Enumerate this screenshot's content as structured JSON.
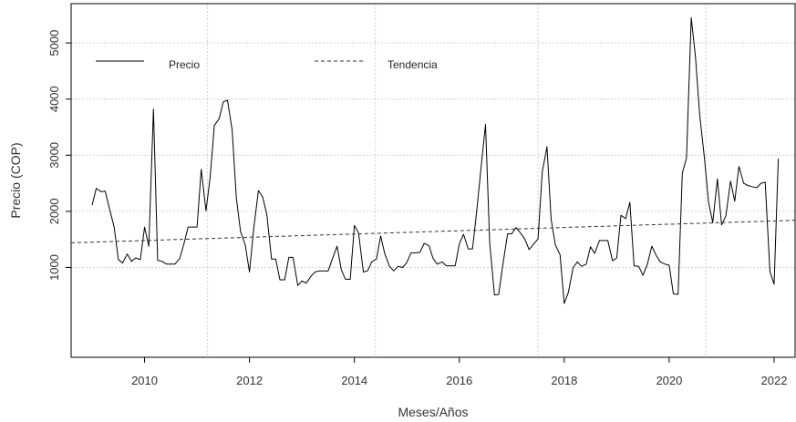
{
  "chart_data": {
    "type": "line",
    "title": "",
    "xlabel": "Meses/Años",
    "ylabel": "Precio (COP)",
    "xlim": [
      2008.6,
      2022.4
    ],
    "ylim": [
      -600,
      5700
    ],
    "x_ticks": [
      2010,
      2012,
      2014,
      2016,
      2018,
      2020,
      2022
    ],
    "y_ticks": [
      1000,
      2000,
      3000,
      4000,
      5000
    ],
    "grid": true,
    "legend_position": "top-left",
    "x_gridlines": [
      2011.2,
      2014.4,
      2017.5,
      2020.7
    ],
    "series": [
      {
        "name": "Precio",
        "style": "solid",
        "color": "#000000",
        "points": [
          [
            2009.0,
            2110
          ],
          [
            2009.08,
            2410
          ],
          [
            2009.17,
            2350
          ],
          [
            2009.25,
            2360
          ],
          [
            2009.33,
            2050
          ],
          [
            2009.42,
            1720
          ],
          [
            2009.5,
            1140
          ],
          [
            2009.58,
            1080
          ],
          [
            2009.67,
            1240
          ],
          [
            2009.75,
            1110
          ],
          [
            2009.83,
            1170
          ],
          [
            2009.92,
            1140
          ],
          [
            2010.0,
            1720
          ],
          [
            2010.08,
            1380
          ],
          [
            2010.17,
            3820
          ],
          [
            2010.25,
            1130
          ],
          [
            2010.33,
            1110
          ],
          [
            2010.42,
            1060
          ],
          [
            2010.5,
            1060
          ],
          [
            2010.58,
            1060
          ],
          [
            2010.67,
            1160
          ],
          [
            2010.75,
            1420
          ],
          [
            2010.83,
            1720
          ],
          [
            2010.92,
            1720
          ],
          [
            2011.0,
            1720
          ],
          [
            2011.08,
            2750
          ],
          [
            2011.17,
            2010
          ],
          [
            2011.25,
            2610
          ],
          [
            2011.33,
            3530
          ],
          [
            2011.42,
            3650
          ],
          [
            2011.5,
            3950
          ],
          [
            2011.58,
            3980
          ],
          [
            2011.67,
            3450
          ],
          [
            2011.75,
            2240
          ],
          [
            2011.83,
            1640
          ],
          [
            2011.92,
            1400
          ],
          [
            2012.0,
            920
          ],
          [
            2012.08,
            1680
          ],
          [
            2012.17,
            2370
          ],
          [
            2012.25,
            2260
          ],
          [
            2012.33,
            1950
          ],
          [
            2012.42,
            1150
          ],
          [
            2012.5,
            1150
          ],
          [
            2012.58,
            780
          ],
          [
            2012.67,
            780
          ],
          [
            2012.75,
            1180
          ],
          [
            2012.83,
            1180
          ],
          [
            2012.92,
            680
          ],
          [
            2013.0,
            760
          ],
          [
            2013.08,
            720
          ],
          [
            2013.17,
            840
          ],
          [
            2013.25,
            920
          ],
          [
            2013.33,
            940
          ],
          [
            2013.42,
            940
          ],
          [
            2013.5,
            940
          ],
          [
            2013.58,
            1150
          ],
          [
            2013.67,
            1380
          ],
          [
            2013.75,
            960
          ],
          [
            2013.83,
            790
          ],
          [
            2013.92,
            790
          ],
          [
            2014.0,
            1750
          ],
          [
            2014.08,
            1610
          ],
          [
            2014.17,
            920
          ],
          [
            2014.25,
            940
          ],
          [
            2014.33,
            1100
          ],
          [
            2014.42,
            1150
          ],
          [
            2014.5,
            1560
          ],
          [
            2014.58,
            1240
          ],
          [
            2014.67,
            1020
          ],
          [
            2014.75,
            940
          ],
          [
            2014.83,
            1020
          ],
          [
            2014.92,
            1000
          ],
          [
            2015.0,
            1090
          ],
          [
            2015.08,
            1260
          ],
          [
            2015.17,
            1260
          ],
          [
            2015.25,
            1270
          ],
          [
            2015.33,
            1430
          ],
          [
            2015.42,
            1390
          ],
          [
            2015.5,
            1160
          ],
          [
            2015.58,
            1060
          ],
          [
            2015.67,
            1100
          ],
          [
            2015.75,
            1030
          ],
          [
            2015.83,
            1030
          ],
          [
            2015.92,
            1030
          ],
          [
            2016.0,
            1420
          ],
          [
            2016.08,
            1590
          ],
          [
            2016.17,
            1330
          ],
          [
            2016.25,
            1330
          ],
          [
            2016.33,
            2000
          ],
          [
            2016.42,
            2830
          ],
          [
            2016.5,
            3550
          ],
          [
            2016.58,
            1430
          ],
          [
            2016.67,
            510
          ],
          [
            2016.75,
            520
          ],
          [
            2016.83,
            1050
          ],
          [
            2016.92,
            1600
          ],
          [
            2017.0,
            1600
          ],
          [
            2017.08,
            1710
          ],
          [
            2017.17,
            1610
          ],
          [
            2017.25,
            1500
          ],
          [
            2017.33,
            1320
          ],
          [
            2017.42,
            1420
          ],
          [
            2017.5,
            1510
          ],
          [
            2017.58,
            2700
          ],
          [
            2017.67,
            3150
          ],
          [
            2017.75,
            1850
          ],
          [
            2017.83,
            1400
          ],
          [
            2017.92,
            1230
          ],
          [
            2018.0,
            360
          ],
          [
            2018.08,
            560
          ],
          [
            2018.17,
            1000
          ],
          [
            2018.25,
            1100
          ],
          [
            2018.33,
            1020
          ],
          [
            2018.42,
            1060
          ],
          [
            2018.5,
            1370
          ],
          [
            2018.58,
            1250
          ],
          [
            2018.67,
            1480
          ],
          [
            2018.75,
            1480
          ],
          [
            2018.83,
            1480
          ],
          [
            2018.92,
            1120
          ],
          [
            2019.0,
            1170
          ],
          [
            2019.08,
            1930
          ],
          [
            2019.17,
            1870
          ],
          [
            2019.25,
            2160
          ],
          [
            2019.33,
            1030
          ],
          [
            2019.42,
            1020
          ],
          [
            2019.5,
            860
          ],
          [
            2019.58,
            1040
          ],
          [
            2019.67,
            1380
          ],
          [
            2019.75,
            1220
          ],
          [
            2019.83,
            1100
          ],
          [
            2019.92,
            1060
          ],
          [
            2020.0,
            1040
          ],
          [
            2020.08,
            530
          ],
          [
            2020.17,
            520
          ],
          [
            2020.25,
            2680
          ],
          [
            2020.33,
            2950
          ],
          [
            2020.42,
            5450
          ],
          [
            2020.5,
            4760
          ],
          [
            2020.58,
            3730
          ],
          [
            2020.67,
            2960
          ],
          [
            2020.75,
            2160
          ],
          [
            2020.83,
            1800
          ],
          [
            2020.92,
            2580
          ],
          [
            2021.0,
            1760
          ],
          [
            2021.08,
            1920
          ],
          [
            2021.17,
            2540
          ],
          [
            2021.25,
            2180
          ],
          [
            2021.33,
            2800
          ],
          [
            2021.42,
            2500
          ],
          [
            2021.5,
            2460
          ],
          [
            2021.58,
            2440
          ],
          [
            2021.67,
            2420
          ],
          [
            2021.75,
            2500
          ],
          [
            2021.83,
            2520
          ],
          [
            2021.92,
            930
          ],
          [
            2022.0,
            700
          ],
          [
            2022.08,
            2940
          ]
        ]
      },
      {
        "name": "Tendencia",
        "style": "dashed",
        "color": "#333333",
        "points": [
          [
            2008.6,
            1440
          ],
          [
            2022.4,
            1840
          ]
        ]
      }
    ]
  }
}
